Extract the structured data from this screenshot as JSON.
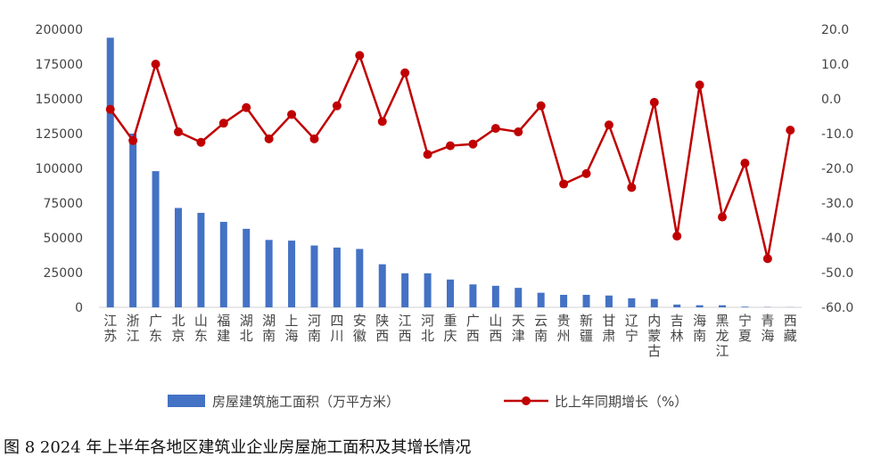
{
  "caption": "图 8 2024 年上半年各地区建筑业企业房屋施工面积及其增长情况",
  "chart_data": {
    "type": "bar+line",
    "categories": [
      "江苏",
      "浙江",
      "广东",
      "北京",
      "山东",
      "福建",
      "湖北",
      "湖南",
      "上海",
      "河南",
      "四川",
      "安徽",
      "陕西",
      "江西",
      "河北",
      "重庆",
      "广西",
      "山西",
      "天津",
      "云南",
      "贵州",
      "新疆",
      "甘肃",
      "辽宁",
      "内蒙古",
      "吉林",
      "海南",
      "黑龙江",
      "宁夏",
      "青海",
      "西藏"
    ],
    "series": [
      {
        "name": "房屋建筑施工面积（万平方米）",
        "type": "bar",
        "axis": "left",
        "color": "#4472C4",
        "values": [
          194000,
          125000,
          98000,
          71500,
          68000,
          61500,
          56500,
          48500,
          48000,
          44500,
          43000,
          42000,
          31000,
          24500,
          24500,
          20000,
          16500,
          15500,
          14000,
          10500,
          9000,
          9000,
          8500,
          6500,
          6000,
          2000,
          1500,
          1500,
          500,
          200,
          100
        ]
      },
      {
        "name": "比上年同期增长（%）",
        "type": "line",
        "axis": "right",
        "color": "#C00000",
        "values": [
          -3.0,
          -12.0,
          10.0,
          -9.5,
          -12.5,
          -7.0,
          -2.5,
          -11.5,
          -4.5,
          -11.5,
          -2.0,
          12.5,
          -6.5,
          7.5,
          -16.0,
          -13.5,
          -13.0,
          -8.5,
          -9.5,
          -2.0,
          -24.5,
          -21.5,
          -7.5,
          -25.5,
          -1.0,
          -39.5,
          4.0,
          -34.0,
          -18.5,
          -46.0,
          -9.0
        ]
      }
    ],
    "y_left": {
      "min": 0,
      "max": 200000,
      "step": 25000,
      "ticks": [
        "0",
        "25000",
        "50000",
        "75000",
        "100000",
        "125000",
        "150000",
        "175000",
        "200000"
      ]
    },
    "y_right": {
      "min": -60,
      "max": 20,
      "step": 10,
      "ticks": [
        "-60.0",
        "-50.0",
        "-40.0",
        "-30.0",
        "-20.0",
        "-10.0",
        "0.0",
        "10.0",
        "20.0"
      ]
    },
    "grid": false,
    "legend_position": "bottom"
  }
}
